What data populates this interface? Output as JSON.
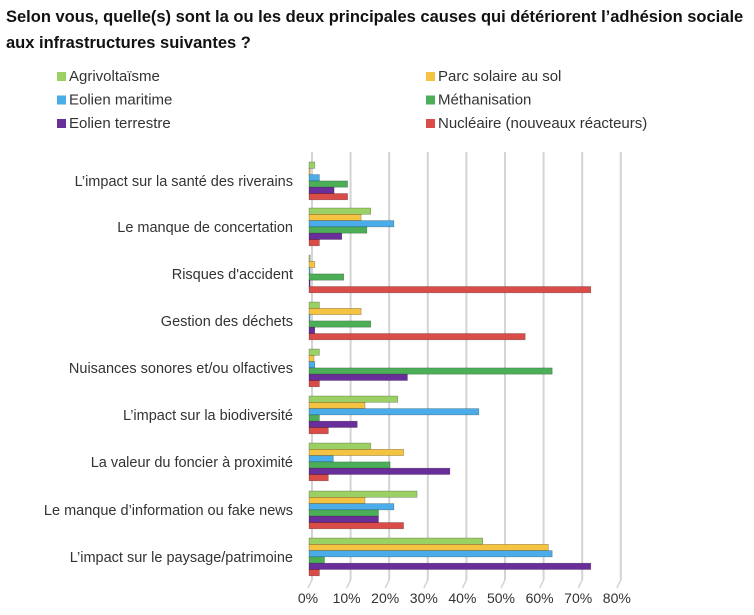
{
  "chart_data": {
    "type": "bar",
    "orientation": "horizontal",
    "title": "Selon vous, quelle(s) sont la ou les deux principales causes qui détériorent l’adhésion sociale aux infrastructures suivantes ?",
    "categories": [
      "L’impact sur la santé des riverains",
      "Le manque de concertation",
      "Risques d'accident",
      "Gestion des déchets",
      "Nuisances sonores et/ou olfactives",
      "L’impact sur la biodiversité",
      "La valeur du foncier à proximité",
      "Le manque d’information ou fake news",
      "L’impact sur le paysage/patrimoine"
    ],
    "series": [
      {
        "name": "Agrivoltaïsme",
        "color": "#9bd064",
        "values": [
          1.5,
          16,
          0.3,
          2.7,
          2.7,
          23,
          16,
          28,
          45
        ]
      },
      {
        "name": "Parc solaire au sol",
        "color": "#f5c342",
        "values": [
          0.3,
          13.5,
          1.5,
          13.5,
          1.3,
          14.5,
          24.5,
          14.5,
          62
        ]
      },
      {
        "name": "Eolien maritime",
        "color": "#4aace8",
        "values": [
          2.7,
          22,
          0.3,
          0.3,
          1.5,
          44,
          6.3,
          22,
          63
        ]
      },
      {
        "name": "Méthanisation",
        "color": "#4caf58",
        "values": [
          10,
          15,
          9,
          16,
          63,
          2.7,
          21,
          18,
          4
        ]
      },
      {
        "name": "Eolien terrestre",
        "color": "#6a2e9a",
        "values": [
          6.5,
          8.5,
          0.3,
          1.5,
          25.5,
          12.5,
          36.5,
          18,
          73
        ]
      },
      {
        "name": "Nucléaire (nouveaux réacteurs)",
        "color": "#d94c48",
        "values": [
          10,
          2.7,
          73,
          56,
          2.7,
          5,
          5,
          24.5,
          2.7
        ]
      }
    ],
    "xlim": [
      0,
      80
    ],
    "xticks": [
      "0%",
      "10%",
      "20%",
      "30%",
      "40%",
      "50%",
      "60%",
      "70%",
      "80%"
    ],
    "grid": true,
    "legend_placement": "top"
  }
}
